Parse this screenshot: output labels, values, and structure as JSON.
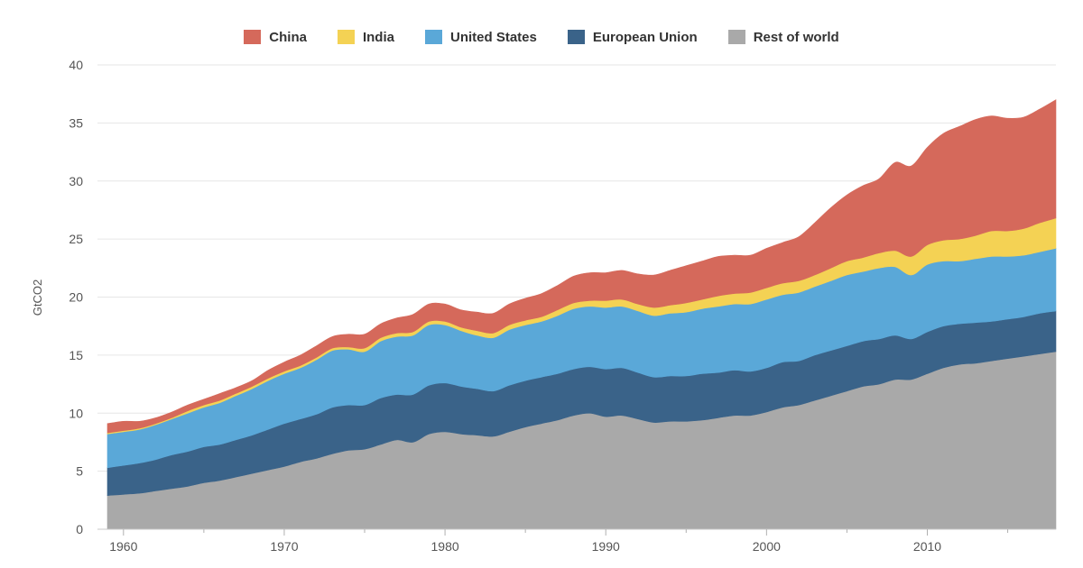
{
  "chart_data": {
    "type": "area",
    "stacked": true,
    "ylabel": "GtCO2",
    "xlabel": "",
    "xlim": [
      1959,
      2018
    ],
    "ylim": [
      0,
      40
    ],
    "yticks": [
      0,
      5,
      10,
      15,
      20,
      25,
      30,
      35,
      40
    ],
    "xticks": [
      1960,
      1970,
      1980,
      1990,
      2000,
      2010
    ],
    "grid": "horizontal",
    "legend_position": "top-center",
    "x": [
      1959,
      1960,
      1961,
      1962,
      1963,
      1964,
      1965,
      1966,
      1967,
      1968,
      1969,
      1970,
      1971,
      1972,
      1973,
      1974,
      1975,
      1976,
      1977,
      1978,
      1979,
      1980,
      1981,
      1982,
      1983,
      1984,
      1985,
      1986,
      1987,
      1988,
      1989,
      1990,
      1991,
      1992,
      1993,
      1994,
      1995,
      1996,
      1997,
      1998,
      1999,
      2000,
      2001,
      2002,
      2003,
      2004,
      2005,
      2006,
      2007,
      2008,
      2009,
      2010,
      2011,
      2012,
      2013,
      2014,
      2015,
      2016,
      2017,
      2018
    ],
    "legend_order": [
      "China",
      "India",
      "United States",
      "European Union",
      "Rest of world"
    ],
    "series": [
      {
        "name": "Rest of world",
        "color": "#a9a9a9",
        "values": [
          2.9,
          3.0,
          3.1,
          3.3,
          3.5,
          3.7,
          4.0,
          4.2,
          4.5,
          4.8,
          5.1,
          5.4,
          5.8,
          6.1,
          6.5,
          6.8,
          6.9,
          7.3,
          7.7,
          7.5,
          8.2,
          8.4,
          8.2,
          8.1,
          8.0,
          8.4,
          8.8,
          9.1,
          9.4,
          9.8,
          10.0,
          9.7,
          9.8,
          9.5,
          9.2,
          9.3,
          9.3,
          9.4,
          9.6,
          9.8,
          9.8,
          10.1,
          10.5,
          10.7,
          11.1,
          11.5,
          11.9,
          12.3,
          12.5,
          12.9,
          12.9,
          13.4,
          13.9,
          14.2,
          14.3,
          14.5,
          14.7,
          14.9,
          15.1,
          15.3
        ]
      },
      {
        "name": "European Union",
        "color": "#3a6389",
        "values": [
          2.4,
          2.5,
          2.6,
          2.7,
          2.9,
          3.0,
          3.1,
          3.1,
          3.2,
          3.3,
          3.5,
          3.7,
          3.7,
          3.8,
          4.0,
          3.9,
          3.8,
          4.0,
          3.9,
          4.1,
          4.2,
          4.2,
          4.1,
          4.0,
          3.9,
          4.0,
          4.0,
          4.0,
          4.0,
          4.0,
          4.0,
          4.1,
          4.1,
          4.0,
          3.9,
          3.9,
          3.9,
          4.0,
          3.9,
          3.9,
          3.8,
          3.8,
          3.9,
          3.8,
          3.9,
          3.9,
          3.9,
          3.9,
          3.9,
          3.8,
          3.5,
          3.6,
          3.6,
          3.5,
          3.5,
          3.4,
          3.4,
          3.4,
          3.5,
          3.5
        ]
      },
      {
        "name": "United States",
        "color": "#5aa8d8",
        "values": [
          2.9,
          2.9,
          2.9,
          3.0,
          3.1,
          3.3,
          3.4,
          3.6,
          3.8,
          4.0,
          4.2,
          4.3,
          4.4,
          4.7,
          4.9,
          4.8,
          4.6,
          4.9,
          5.0,
          5.1,
          5.2,
          5.0,
          4.8,
          4.6,
          4.6,
          4.8,
          4.8,
          4.8,
          5.0,
          5.2,
          5.2,
          5.3,
          5.3,
          5.3,
          5.3,
          5.4,
          5.5,
          5.6,
          5.7,
          5.7,
          5.8,
          5.9,
          5.8,
          5.9,
          5.9,
          6.0,
          6.1,
          6.0,
          6.1,
          5.9,
          5.5,
          5.8,
          5.6,
          5.4,
          5.5,
          5.6,
          5.4,
          5.3,
          5.3,
          5.4
        ]
      },
      {
        "name": "India",
        "color": "#f4d254",
        "values": [
          0.1,
          0.1,
          0.1,
          0.1,
          0.1,
          0.2,
          0.2,
          0.2,
          0.2,
          0.2,
          0.2,
          0.2,
          0.2,
          0.2,
          0.2,
          0.2,
          0.3,
          0.3,
          0.3,
          0.3,
          0.3,
          0.3,
          0.3,
          0.4,
          0.4,
          0.4,
          0.4,
          0.4,
          0.5,
          0.5,
          0.5,
          0.6,
          0.6,
          0.6,
          0.7,
          0.7,
          0.8,
          0.8,
          0.9,
          0.9,
          1.0,
          1.0,
          1.0,
          1.0,
          1.0,
          1.1,
          1.2,
          1.2,
          1.3,
          1.4,
          1.6,
          1.7,
          1.8,
          1.9,
          2.0,
          2.2,
          2.2,
          2.3,
          2.5,
          2.6
        ]
      },
      {
        "name": "China",
        "color": "#d5695b",
        "values": [
          0.8,
          0.8,
          0.6,
          0.5,
          0.5,
          0.5,
          0.5,
          0.6,
          0.5,
          0.5,
          0.7,
          0.8,
          0.9,
          1.0,
          1.0,
          1.1,
          1.2,
          1.2,
          1.3,
          1.5,
          1.5,
          1.5,
          1.5,
          1.6,
          1.7,
          1.8,
          1.9,
          2.0,
          2.1,
          2.3,
          2.4,
          2.4,
          2.5,
          2.6,
          2.8,
          3.0,
          3.2,
          3.3,
          3.4,
          3.3,
          3.2,
          3.4,
          3.5,
          3.8,
          4.5,
          5.2,
          5.7,
          6.2,
          6.4,
          7.6,
          7.8,
          8.4,
          9.2,
          9.7,
          10.0,
          9.9,
          9.7,
          9.6,
          9.8,
          10.2
        ]
      }
    ]
  }
}
